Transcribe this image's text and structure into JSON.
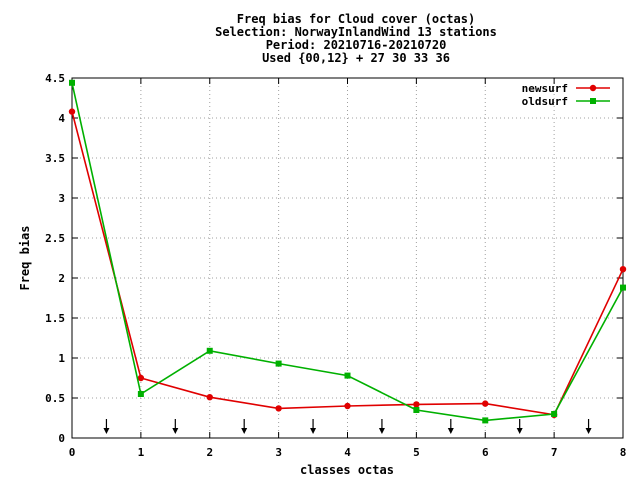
{
  "chart_data": {
    "type": "line",
    "title_lines": [
      "Freq bias  for Cloud cover (octas)",
      "Selection: NorwayInlandWind     13 stations",
      "Period: 20210716-20210720",
      "Used {00,12} + 27 30 33 36"
    ],
    "xlabel": "classes octas",
    "ylabel": "Freq bias",
    "xlim": [
      0,
      8
    ],
    "ylim": [
      0,
      4.5
    ],
    "x_ticks": [
      "0",
      "1",
      "2",
      "3",
      "4",
      "5",
      "6",
      "7",
      "8"
    ],
    "y_ticks": [
      "0",
      "0.5",
      "1",
      "1.5",
      "2",
      "2.5",
      "3",
      "3.5",
      "4",
      "4.5"
    ],
    "grid": true,
    "legend_position": "top-right",
    "arrow_markers_x": [
      0.5,
      1.5,
      2.5,
      3.5,
      4.5,
      5.5,
      6.5,
      7.5
    ],
    "x": [
      0,
      1,
      2,
      3,
      4,
      5,
      6,
      7,
      8
    ],
    "series": [
      {
        "name": "newsurf",
        "color": "#e00000",
        "values": [
          4.08,
          0.75,
          0.51,
          0.37,
          0.4,
          0.42,
          0.43,
          0.29,
          2.11
        ]
      },
      {
        "name": "oldsurf",
        "color": "#00b000",
        "values": [
          4.44,
          0.55,
          1.09,
          0.93,
          0.78,
          0.35,
          0.22,
          0.3,
          1.88
        ]
      }
    ]
  }
}
